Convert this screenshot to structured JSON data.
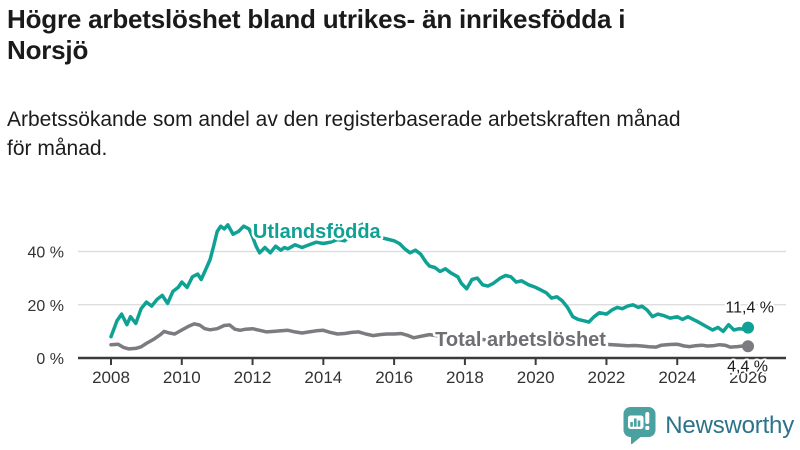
{
  "header": {
    "title_lines": [
      "Högre arbetslöshet bland utrikes- än inrikesfödda i",
      "Norsjö"
    ],
    "subtitle_lines": [
      "Arbetssökande som andel av den registerbaserade arbetskraften månad",
      "för månad."
    ]
  },
  "footer": {
    "brand": "Newsworthy",
    "logo_icon": "newsworthy-speech-bubble-bar-chart-icon"
  },
  "colors": {
    "accent_teal": "#0FA294",
    "line_gray": "#7B7B80",
    "label_gray": "#6E6E73",
    "gridline": "#DADADA",
    "axis": "#3B3B3B",
    "tick_text": "#333333",
    "value_text": "#1A1A1A",
    "logo_teal": "#4BA0A0",
    "logo_text": "#2C7389",
    "background": "#FFFFFF"
  },
  "chart_data": {
    "type": "line",
    "title": "Högre arbetslöshet bland utrikes- än inrikesfödda i Norsjö",
    "subtitle": "Arbetssökande som andel av den registerbaserade arbetskraften månad för månad.",
    "xlabel": "",
    "ylabel": "",
    "unit": "%",
    "grid": "horizontal",
    "x_axis": {
      "ticks": [
        2008,
        2010,
        2012,
        2014,
        2016,
        2018,
        2020,
        2022,
        2024,
        2026
      ],
      "tick_labels": [
        "2008",
        "2010",
        "2012",
        "2014",
        "2016",
        "2018",
        "2020",
        "2022",
        "2024",
        "2026"
      ],
      "range": [
        2007.05,
        2027.05
      ]
    },
    "y_axis": {
      "ticks": [
        0,
        20,
        40
      ],
      "tick_labels": [
        "0 %",
        "20 %",
        "40 %"
      ],
      "gridlines": [
        20,
        40
      ],
      "range": [
        0,
        55
      ]
    },
    "series": [
      {
        "name": "Utlandsfödda",
        "color": "#0FA294",
        "label_color": "#0FA294",
        "end_value": 11.4,
        "end_label": "11,4 %",
        "label_anchor": {
          "year": 2012.01,
          "pct": 45.1
        },
        "points": [
          [
            2008.0,
            8
          ],
          [
            2008.17,
            14
          ],
          [
            2008.3,
            16.5
          ],
          [
            2008.45,
            12.5
          ],
          [
            2008.55,
            15.5
          ],
          [
            2008.7,
            13
          ],
          [
            2008.85,
            18.5
          ],
          [
            2009.0,
            21
          ],
          [
            2009.15,
            19.5
          ],
          [
            2009.3,
            22
          ],
          [
            2009.45,
            23.5
          ],
          [
            2009.6,
            20.5
          ],
          [
            2009.75,
            25
          ],
          [
            2009.9,
            26.5
          ],
          [
            2010.0,
            28.5
          ],
          [
            2010.15,
            26.5
          ],
          [
            2010.3,
            30.5
          ],
          [
            2010.45,
            31.5
          ],
          [
            2010.55,
            29.5
          ],
          [
            2010.7,
            34
          ],
          [
            2010.8,
            37
          ],
          [
            2010.9,
            42
          ],
          [
            2011.0,
            47.5
          ],
          [
            2011.1,
            49.5
          ],
          [
            2011.2,
            48.5
          ],
          [
            2011.3,
            50
          ],
          [
            2011.45,
            46.5
          ],
          [
            2011.6,
            47.5
          ],
          [
            2011.75,
            49.5
          ],
          [
            2011.9,
            48.5
          ],
          [
            2012.0,
            45.5
          ],
          [
            2012.1,
            42
          ],
          [
            2012.2,
            39.5
          ],
          [
            2012.35,
            41.5
          ],
          [
            2012.5,
            39.5
          ],
          [
            2012.65,
            42
          ],
          [
            2012.8,
            40.5
          ],
          [
            2012.9,
            41.5
          ],
          [
            2013.0,
            41
          ],
          [
            2013.2,
            42.5
          ],
          [
            2013.4,
            41.5
          ],
          [
            2013.6,
            42.5
          ],
          [
            2013.8,
            43.5
          ],
          [
            2014.0,
            43
          ],
          [
            2014.2,
            43.5
          ],
          [
            2014.4,
            44.5
          ],
          [
            2014.6,
            44
          ],
          [
            2014.8,
            46.5
          ],
          [
            2015.0,
            49.5
          ],
          [
            2015.15,
            50.5
          ],
          [
            2015.3,
            48
          ],
          [
            2015.5,
            46
          ],
          [
            2015.7,
            45
          ],
          [
            2015.85,
            44.5
          ],
          [
            2016.0,
            44
          ],
          [
            2016.15,
            43
          ],
          [
            2016.3,
            41
          ],
          [
            2016.45,
            39.5
          ],
          [
            2016.6,
            40.5
          ],
          [
            2016.75,
            39
          ],
          [
            2016.9,
            36
          ],
          [
            2017.0,
            34.5
          ],
          [
            2017.15,
            34
          ],
          [
            2017.3,
            32.5
          ],
          [
            2017.45,
            33.5
          ],
          [
            2017.6,
            32
          ],
          [
            2017.8,
            30.5
          ],
          [
            2017.9,
            28
          ],
          [
            2018.05,
            26
          ],
          [
            2018.2,
            29.5
          ],
          [
            2018.35,
            30
          ],
          [
            2018.5,
            27.5
          ],
          [
            2018.65,
            27
          ],
          [
            2018.8,
            28
          ],
          [
            2019.0,
            30
          ],
          [
            2019.15,
            31
          ],
          [
            2019.3,
            30.5
          ],
          [
            2019.45,
            28.5
          ],
          [
            2019.6,
            29
          ],
          [
            2019.8,
            27.5
          ],
          [
            2020.0,
            26.5
          ],
          [
            2020.15,
            25.5
          ],
          [
            2020.3,
            24.5
          ],
          [
            2020.45,
            22.5
          ],
          [
            2020.6,
            23
          ],
          [
            2020.75,
            21.5
          ],
          [
            2020.9,
            19
          ],
          [
            2021.05,
            15.5
          ],
          [
            2021.2,
            14.5
          ],
          [
            2021.35,
            14
          ],
          [
            2021.5,
            13.5
          ],
          [
            2021.65,
            15.5
          ],
          [
            2021.8,
            17
          ],
          [
            2022.0,
            16.5
          ],
          [
            2022.15,
            18
          ],
          [
            2022.3,
            19
          ],
          [
            2022.45,
            18.5
          ],
          [
            2022.6,
            19.5
          ],
          [
            2022.75,
            20
          ],
          [
            2022.9,
            19
          ],
          [
            2023.0,
            19.5
          ],
          [
            2023.15,
            18
          ],
          [
            2023.3,
            15.5
          ],
          [
            2023.45,
            16.5
          ],
          [
            2023.6,
            16
          ],
          [
            2023.8,
            15
          ],
          [
            2024.0,
            15.5
          ],
          [
            2024.15,
            14.5
          ],
          [
            2024.3,
            15.5
          ],
          [
            2024.45,
            14.5
          ],
          [
            2024.6,
            13.5
          ],
          [
            2024.8,
            12
          ],
          [
            2025.0,
            10.5
          ],
          [
            2025.15,
            11.5
          ],
          [
            2025.3,
            10
          ],
          [
            2025.45,
            12.5
          ],
          [
            2025.6,
            10.5
          ],
          [
            2025.75,
            11
          ],
          [
            2025.9,
            10.8
          ],
          [
            2026.0,
            11.4
          ]
        ]
      },
      {
        "name": "Total arbetslöshet",
        "color": "#7B7B80",
        "label_color": "#6E6E73",
        "end_value": 4.4,
        "end_label": "4,4 %",
        "label_anchor": {
          "year": 2017.16,
          "pct": 4.5
        },
        "points": [
          [
            2008.0,
            5
          ],
          [
            2008.2,
            5.2
          ],
          [
            2008.35,
            4
          ],
          [
            2008.5,
            3.4
          ],
          [
            2008.7,
            3.6
          ],
          [
            2008.85,
            4.2
          ],
          [
            2009.0,
            5.5
          ],
          [
            2009.2,
            7
          ],
          [
            2009.4,
            8.8
          ],
          [
            2009.5,
            10
          ],
          [
            2009.65,
            9.4
          ],
          [
            2009.8,
            9
          ],
          [
            2010.0,
            10.5
          ],
          [
            2010.2,
            12
          ],
          [
            2010.35,
            12.8
          ],
          [
            2010.5,
            12.4
          ],
          [
            2010.65,
            11
          ],
          [
            2010.8,
            10.6
          ],
          [
            2011.0,
            11
          ],
          [
            2011.2,
            12.2
          ],
          [
            2011.35,
            12.4
          ],
          [
            2011.5,
            10.8
          ],
          [
            2011.65,
            10.4
          ],
          [
            2011.8,
            10.8
          ],
          [
            2012.0,
            11
          ],
          [
            2012.2,
            10.4
          ],
          [
            2012.4,
            9.8
          ],
          [
            2012.6,
            10
          ],
          [
            2012.8,
            10.2
          ],
          [
            2013.0,
            10.4
          ],
          [
            2013.2,
            9.8
          ],
          [
            2013.4,
            9.4
          ],
          [
            2013.6,
            9.8
          ],
          [
            2013.8,
            10.2
          ],
          [
            2014.0,
            10.4
          ],
          [
            2014.2,
            9.6
          ],
          [
            2014.4,
            9
          ],
          [
            2014.6,
            9.2
          ],
          [
            2014.8,
            9.6
          ],
          [
            2015.0,
            9.8
          ],
          [
            2015.2,
            9
          ],
          [
            2015.4,
            8.4
          ],
          [
            2015.6,
            8.8
          ],
          [
            2015.8,
            9
          ],
          [
            2016.0,
            9
          ],
          [
            2016.2,
            9.2
          ],
          [
            2016.4,
            8.4
          ],
          [
            2016.55,
            7.6
          ],
          [
            2016.7,
            8
          ],
          [
            2016.85,
            8.4
          ],
          [
            2017.0,
            8.8
          ],
          [
            2017.2,
            8.4
          ],
          [
            2017.4,
            8
          ],
          [
            2017.6,
            7.8
          ],
          [
            2017.8,
            7.6
          ],
          [
            2018.0,
            7.8
          ],
          [
            2018.3,
            7.2
          ],
          [
            2018.6,
            6.8
          ],
          [
            2019.0,
            7
          ],
          [
            2019.3,
            6.6
          ],
          [
            2019.6,
            6.3
          ],
          [
            2020.0,
            6.5
          ],
          [
            2020.3,
            6.8
          ],
          [
            2020.6,
            6.3
          ],
          [
            2021.0,
            6
          ],
          [
            2021.3,
            5.6
          ],
          [
            2021.6,
            5.3
          ],
          [
            2022.0,
            5.1
          ],
          [
            2022.3,
            4.9
          ],
          [
            2022.6,
            4.6
          ],
          [
            2022.8,
            4.7
          ],
          [
            2023.0,
            4.5
          ],
          [
            2023.2,
            4.2
          ],
          [
            2023.4,
            4.1
          ],
          [
            2023.55,
            4.8
          ],
          [
            2023.7,
            5
          ],
          [
            2023.85,
            5.1
          ],
          [
            2024.0,
            5.2
          ],
          [
            2024.2,
            4.5
          ],
          [
            2024.35,
            4.3
          ],
          [
            2024.5,
            4.6
          ],
          [
            2024.7,
            4.8
          ],
          [
            2024.85,
            4.5
          ],
          [
            2025.0,
            4.6
          ],
          [
            2025.2,
            5
          ],
          [
            2025.35,
            4.8
          ],
          [
            2025.5,
            4.1
          ],
          [
            2025.7,
            4.3
          ],
          [
            2025.85,
            4.5
          ],
          [
            2026.0,
            4.4
          ]
        ]
      }
    ]
  }
}
